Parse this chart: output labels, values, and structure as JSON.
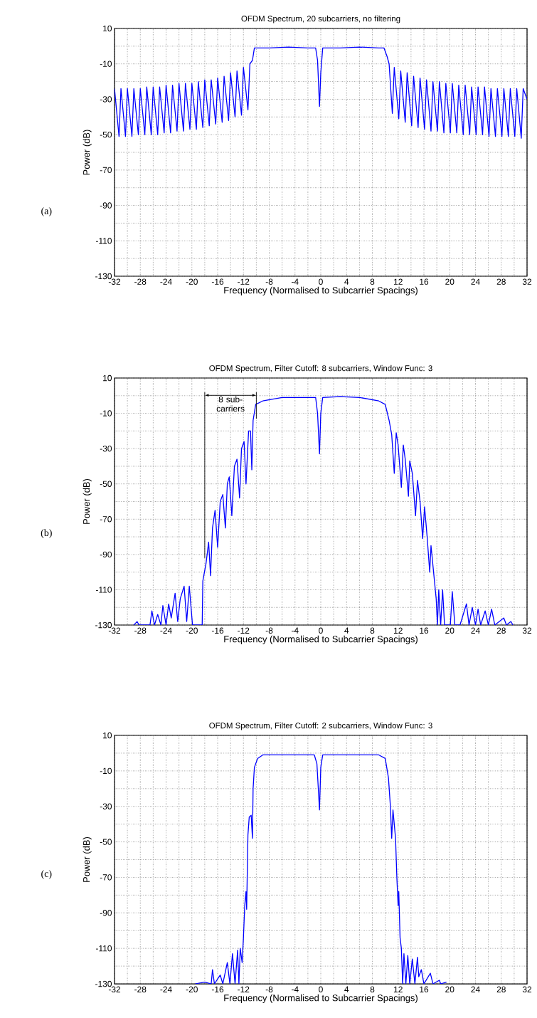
{
  "chart_data": [
    {
      "type": "line",
      "title": "OFDM Spectrum, 20 subcarriers, no filtering",
      "xlabel": "Frequency (Normalised to Subcarrier Spacings)",
      "ylabel": "Power (dB)",
      "annotations": [
        "(a)"
      ],
      "series": [
        {
          "color": "#0000ff",
          "x": [
            -32,
            -31.3,
            -31,
            -30.3,
            -30,
            -29.3,
            -29,
            -28.3,
            -28,
            -27.3,
            -27,
            -26.3,
            -26,
            -25.3,
            -25,
            -24.3,
            -24,
            -23.3,
            -23,
            -22.3,
            -22,
            -21.3,
            -21,
            -20.3,
            -20,
            -19.3,
            -19,
            -18.3,
            -18,
            -17.3,
            -17,
            -16.3,
            -16,
            -15.3,
            -15,
            -14.3,
            -14,
            -13.3,
            -13,
            -12.3,
            -12,
            -11.3,
            -11,
            -10.6,
            -10.3,
            -8,
            -5,
            -2,
            -0.8,
            -0.5,
            -0.2,
            0,
            0.3,
            3,
            6,
            9,
            9.8,
            10.3,
            10.6,
            11.1,
            11.4,
            12.1,
            12.4,
            13.1,
            13.4,
            14.1,
            14.4,
            15.1,
            15.4,
            16.1,
            16.4,
            17.1,
            17.4,
            18.1,
            18.4,
            19.1,
            19.4,
            20.1,
            20.4,
            21.1,
            21.4,
            22.1,
            22.4,
            23.1,
            23.4,
            24.1,
            24.4,
            25.1,
            25.4,
            26.1,
            26.4,
            27.1,
            27.4,
            28.1,
            28.4,
            29.1,
            29.4,
            30.1,
            30.4,
            31.1,
            31.4,
            32
          ],
          "values": [
            -24,
            -51,
            -24,
            -51,
            -24,
            -51,
            -24,
            -50,
            -24,
            -50,
            -23,
            -50,
            -23,
            -50,
            -23,
            -49,
            -22,
            -49,
            -22,
            -48,
            -21,
            -48,
            -21,
            -47,
            -21,
            -47,
            -20,
            -46,
            -19,
            -45,
            -19,
            -44,
            -18,
            -43,
            -17,
            -42,
            -15,
            -40,
            -14,
            -39,
            -12,
            -36,
            -10,
            -8,
            -1,
            -1,
            -0.5,
            -1,
            -1,
            -8,
            -34,
            -15,
            -1,
            -1,
            -0.5,
            -1,
            -1,
            -6,
            -10,
            -38,
            -12,
            -41,
            -14,
            -43,
            -15,
            -45,
            -17,
            -46,
            -18,
            -47,
            -19,
            -48,
            -20,
            -48,
            -20,
            -49,
            -21,
            -49,
            -21,
            -49,
            -22,
            -50,
            -22,
            -50,
            -23,
            -50,
            -23,
            -50,
            -23,
            -51,
            -24,
            -51,
            -24,
            -51,
            -24,
            -51,
            -24,
            -51,
            -24,
            -52,
            -24,
            -30
          ]
        }
      ],
      "xlim": [
        -32,
        32
      ],
      "ylim": [
        -130,
        10
      ],
      "xticks": [
        -32,
        -28,
        -24,
        -20,
        -16,
        -12,
        -8,
        -4,
        0,
        4,
        8,
        12,
        16,
        20,
        24,
        28,
        32
      ],
      "yticks": [
        -130,
        -110,
        -90,
        -70,
        -50,
        -30,
        -10,
        10
      ],
      "grid": true
    },
    {
      "type": "line",
      "title": "OFDM Spectrum, Filter Cutoff: 8 subcarriers, Window Func: 3",
      "xlabel": "Frequency (Normalised to Subcarrier Spacings)",
      "ylabel": "Power (dB)",
      "annotations": [
        "(b)",
        "8 sub-carriers"
      ],
      "series": [
        {
          "color": "#0000ff",
          "x": [
            -29,
            -28.5,
            -28.2,
            -26.5,
            -26.2,
            -25.8,
            -25.3,
            -24.8,
            -24.5,
            -24,
            -23.6,
            -23.2,
            -22.6,
            -22.2,
            -21.8,
            -21.2,
            -20.8,
            -20.4,
            -19.9,
            -18.4,
            -18.3,
            -17.8,
            -17.4,
            -17.1,
            -16.8,
            -16.4,
            -16,
            -15.6,
            -15.2,
            -14.8,
            -14.5,
            -14.2,
            -13.8,
            -13.4,
            -13,
            -12.6,
            -12.3,
            -11.9,
            -11.6,
            -11.2,
            -10.9,
            -10.7,
            -10.5,
            -10.1,
            -9,
            -6,
            -3,
            -0.8,
            -0.5,
            -0.2,
            0,
            0.3,
            3,
            6,
            9,
            10,
            10.6,
            11,
            11.4,
            11.7,
            12,
            12.5,
            12.8,
            13.1,
            13.6,
            13.8,
            14.2,
            14.7,
            15,
            15.4,
            15.8,
            16.1,
            16.5,
            16.9,
            17.1,
            17.5,
            17.9,
            18.1,
            18.3,
            18.6,
            18.9,
            19.2,
            20.1,
            20.4,
            20.8,
            21.6,
            22.6,
            23,
            23.5,
            24,
            24.4,
            24.8,
            25.5,
            26,
            26.5,
            27,
            28.4,
            28.8,
            29.5,
            29.8
          ],
          "values": [
            -130,
            -128,
            -130,
            -130,
            -122,
            -130,
            -124,
            -130,
            -119,
            -130,
            -118,
            -126,
            -112,
            -128,
            -115,
            -108,
            -128,
            -108,
            -130,
            -130,
            -105,
            -95,
            -83,
            -102,
            -75,
            -65,
            -86,
            -60,
            -56,
            -75,
            -50,
            -46,
            -68,
            -40,
            -36,
            -58,
            -30,
            -26,
            -50,
            -20,
            -20,
            -42,
            -14,
            -5,
            -3,
            -1,
            -1,
            -1,
            -10,
            -33,
            -10,
            -1,
            -0.5,
            -1,
            -3,
            -5,
            -14,
            -22,
            -44,
            -21,
            -28,
            -52,
            -28,
            -36,
            -57,
            -37,
            -44,
            -68,
            -48,
            -60,
            -81,
            -63,
            -80,
            -100,
            -85,
            -100,
            -115,
            -130,
            -110,
            -130,
            -110,
            -130,
            -130,
            -111,
            -130,
            -130,
            -118,
            -130,
            -120,
            -130,
            -121,
            -130,
            -122,
            -130,
            -121,
            -130,
            -126,
            -130,
            -128,
            -130
          ]
        },
        {
          "color": "#000000",
          "x": [
            -18,
            -18
          ],
          "values": [
            -92,
            2
          ]
        },
        {
          "color": "#000000",
          "x": [
            -10,
            -10
          ],
          "values": [
            -13,
            2
          ]
        }
      ],
      "xlim": [
        -32,
        32
      ],
      "ylim": [
        -130,
        10
      ],
      "xticks": [
        -32,
        -28,
        -24,
        -20,
        -16,
        -12,
        -8,
        -4,
        0,
        4,
        8,
        12,
        16,
        20,
        24,
        28,
        32
      ],
      "yticks": [
        -130,
        -110,
        -90,
        -70,
        -50,
        -30,
        -10,
        10
      ],
      "grid": true
    },
    {
      "type": "line",
      "title": "OFDM Spectrum, Filter Cutoff: 2 subcarriers, Window Func: 3",
      "xlabel": "Frequency (Normalised to Subcarrier Spacings)",
      "ylabel": "Power (dB)",
      "annotations": [
        "(c)"
      ],
      "series": [
        {
          "color": "#0000ff",
          "x": [
            -19.5,
            -18,
            -17,
            -16.8,
            -16.5,
            -15.6,
            -15.2,
            -14.5,
            -14.1,
            -13.7,
            -13.3,
            -12.9,
            -12.7,
            -12.5,
            -12.2,
            -12,
            -11.8,
            -11.6,
            -11.5,
            -11.3,
            -11.1,
            -10.8,
            -10.6,
            -10.5,
            -10.3,
            -9.8,
            -9,
            -5,
            -1,
            -0.6,
            -0.2,
            0,
            0.3,
            5,
            9,
            10,
            10.5,
            10.8,
            11,
            11.2,
            11.6,
            11.8,
            12,
            12.1,
            12.3,
            12.5,
            12.7,
            12.9,
            13.2,
            13.5,
            13.8,
            14.2,
            14.6,
            15,
            15.2,
            15.6,
            16,
            17,
            17.4,
            18.4,
            18.6,
            19.5
          ],
          "values": [
            -130,
            -129,
            -130,
            -122,
            -130,
            -125,
            -130,
            -118,
            -130,
            -113,
            -130,
            -111,
            -130,
            -110,
            -118,
            -104,
            -86,
            -78,
            -88,
            -46,
            -36,
            -35,
            -48,
            -20,
            -8,
            -3,
            -1,
            -1,
            -1,
            -6,
            -32,
            -8,
            -1,
            -1,
            -1,
            -3,
            -14,
            -30,
            -48,
            -32,
            -48,
            -70,
            -86,
            -78,
            -104,
            -110,
            -130,
            -113,
            -130,
            -114,
            -130,
            -116,
            -130,
            -115,
            -126,
            -122,
            -130,
            -124,
            -130,
            -128,
            -130,
            -129
          ]
        }
      ],
      "xlim": [
        -32,
        32
      ],
      "ylim": [
        -130,
        10
      ],
      "xticks": [
        -32,
        -28,
        -24,
        -20,
        -16,
        -12,
        -8,
        -4,
        0,
        4,
        8,
        12,
        16,
        20,
        24,
        28,
        32
      ],
      "yticks": [
        -130,
        -110,
        -90,
        -70,
        -50,
        -30,
        -10,
        10
      ],
      "grid": true
    }
  ]
}
